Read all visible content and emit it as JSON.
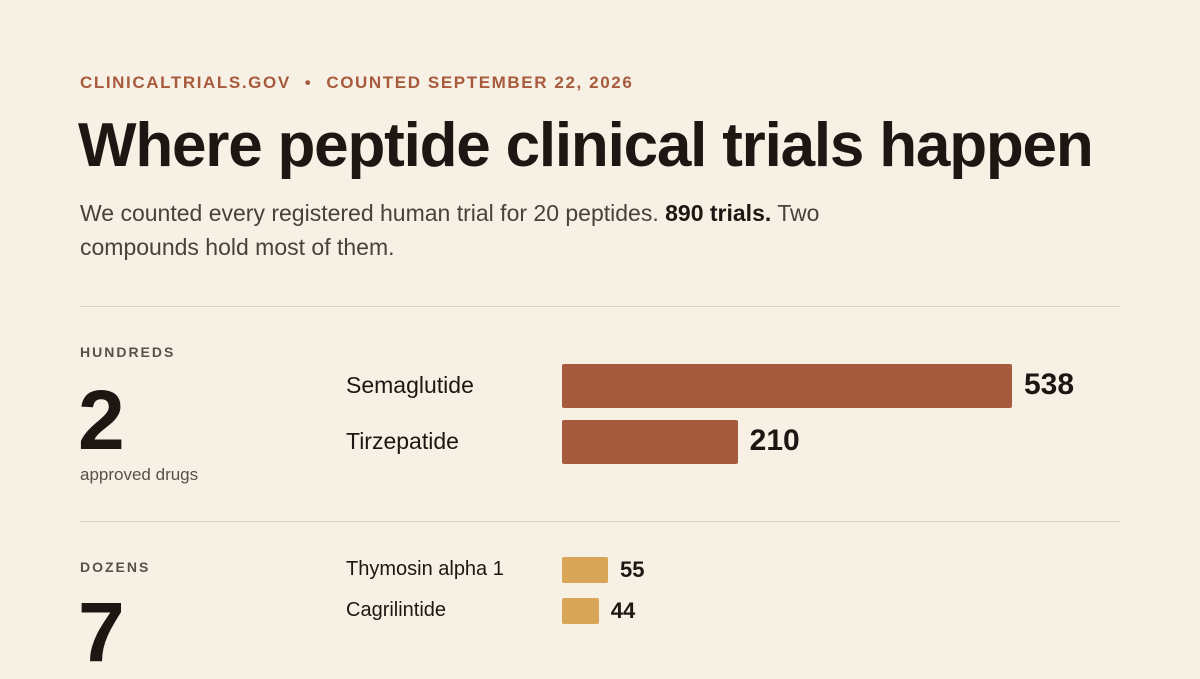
{
  "header": {
    "source": "CLINICALTRIALS.GOV",
    "separator": "•",
    "date": "COUNTED SEPTEMBER 22, 2026",
    "title": "Where peptide clinical trials happen",
    "subtitle_pre": "We counted every registered human trial for 20 peptides. ",
    "subtitle_bold": "890 trials.",
    "subtitle_post": " Two compounds hold most of them."
  },
  "tiers": [
    {
      "label": "HUNDREDS",
      "count": "2",
      "caption": "approved drugs"
    },
    {
      "label": "DOZENS",
      "count": "7"
    }
  ],
  "colors": {
    "hundreds": "#a65b3e",
    "dozens": "#d9a556",
    "accent": "#a85a3c"
  },
  "chart_data": {
    "type": "bar",
    "orientation": "horizontal",
    "categories": [
      "Semaglutide",
      "Tirzepatide",
      "Thymosin alpha 1",
      "Cagrilintide"
    ],
    "values": [
      538,
      210,
      55,
      44
    ],
    "tier": [
      "HUNDREDS",
      "HUNDREDS",
      "DOZENS",
      "DOZENS"
    ],
    "data_labels": [
      "538",
      "210",
      "55",
      "44"
    ]
  }
}
